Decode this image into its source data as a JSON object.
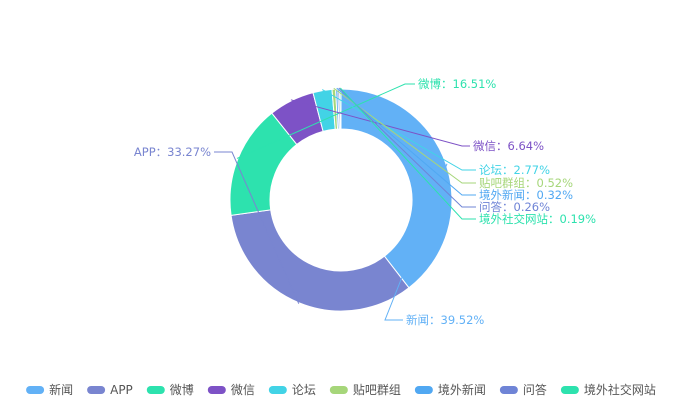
{
  "chart_data": {
    "type": "pie",
    "variant": "donut",
    "label_separator": "：",
    "legend_position": "bottom",
    "slices": [
      {
        "name": "新闻",
        "value": 39.52,
        "color": "#62b1f6"
      },
      {
        "name": "APP",
        "value": 33.27,
        "color": "#7985d0"
      },
      {
        "name": "微博",
        "value": 16.51,
        "color": "#2de2ae"
      },
      {
        "name": "微信",
        "value": 6.64,
        "color": "#7d52c6"
      },
      {
        "name": "论坛",
        "value": 2.77,
        "color": "#42d3e6"
      },
      {
        "name": "贴吧群组",
        "value": 0.52,
        "color": "#a6d67a"
      },
      {
        "name": "境外新闻",
        "value": 0.32,
        "color": "#51a8f2"
      },
      {
        "name": "问答",
        "value": 0.26,
        "color": "#6f84d6"
      },
      {
        "name": "境外社交网站",
        "value": 0.19,
        "color": "#2de2ae"
      }
    ]
  }
}
